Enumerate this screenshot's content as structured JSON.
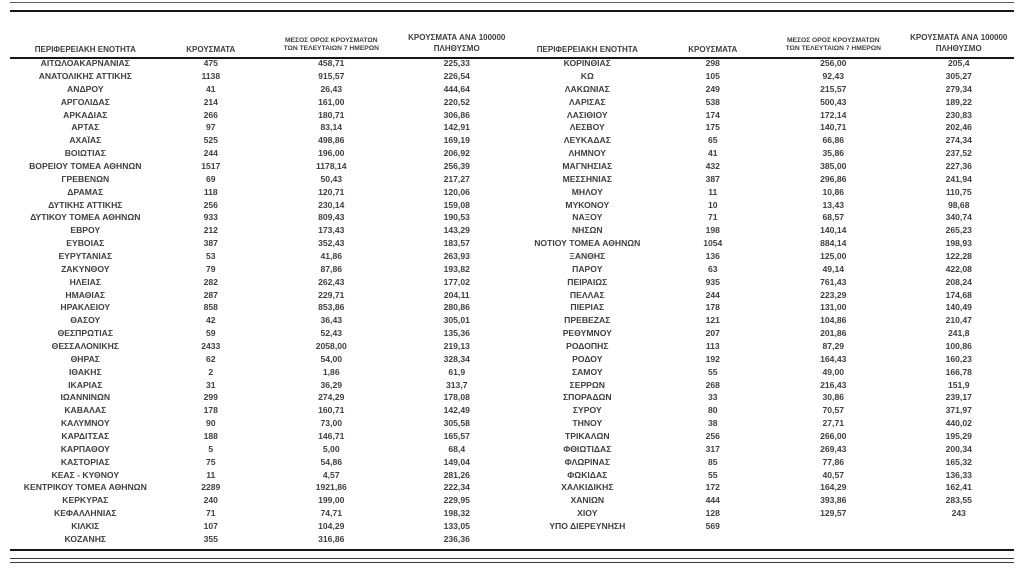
{
  "colors": {
    "text": "#3f3f3f",
    "rule": "#161616"
  },
  "table_columns": {
    "region": "ΠΕΡΙΦΕΡΕΙΑΚΗ ΕΝΟΤΗΤΑ",
    "cases": "ΚΡΟΥΣΜΑΤΑ",
    "avg7_line1": "ΜΕΣΟΣ ΟΡΟΣ ΚΡΟΥΣΜΑΤΩΝ",
    "avg7_line2": "ΤΩΝ ΤΕΛΕΥΤΑΙΩΝ 7 ΗΜΕΡΩΝ",
    "per100k_line1": "ΚΡΟΥΣΜΑΤΑ ΑΝΑ 100000",
    "per100k_line2": "ΠΛΗΘΥΣΜΟ"
  },
  "left_table": {
    "rows": [
      [
        "ΑΙΤΩΛΟΑΚΑΡΝΑΝΙΑΣ",
        "475",
        "458,71",
        "225,33"
      ],
      [
        "ΑΝΑΤΟΛΙΚΗΣ ΑΤΤΙΚΗΣ",
        "1138",
        "915,57",
        "226,54"
      ],
      [
        "ΑΝΔΡΟΥ",
        "41",
        "26,43",
        "444,64"
      ],
      [
        "ΑΡΓΟΛΙΔΑΣ",
        "214",
        "161,00",
        "220,52"
      ],
      [
        "ΑΡΚΑΔΙΑΣ",
        "266",
        "180,71",
        "306,86"
      ],
      [
        "ΑΡΤΑΣ",
        "97",
        "83,14",
        "142,91"
      ],
      [
        "ΑΧΑΪΑΣ",
        "525",
        "498,86",
        "169,19"
      ],
      [
        "ΒΟΙΩΤΙΑΣ",
        "244",
        "196,00",
        "206,92"
      ],
      [
        "ΒΟΡΕΙΟΥ ΤΟΜΕΑ ΑΘΗΝΩΝ",
        "1517",
        "1178,14",
        "256,39"
      ],
      [
        "ΓΡΕΒΕΝΩΝ",
        "69",
        "50,43",
        "217,27"
      ],
      [
        "ΔΡΑΜΑΣ",
        "118",
        "120,71",
        "120,06"
      ],
      [
        "ΔΥΤΙΚΗΣ ΑΤΤΙΚΗΣ",
        "256",
        "230,14",
        "159,08"
      ],
      [
        "ΔΥΤΙΚΟΥ ΤΟΜΕΑ ΑΘΗΝΩΝ",
        "933",
        "809,43",
        "190,53"
      ],
      [
        "ΕΒΡΟΥ",
        "212",
        "173,43",
        "143,29"
      ],
      [
        "ΕΥΒΟΙΑΣ",
        "387",
        "352,43",
        "183,57"
      ],
      [
        "ΕΥΡΥΤΑΝΙΑΣ",
        "53",
        "41,86",
        "263,93"
      ],
      [
        "ΖΑΚΥΝΘΟΥ",
        "79",
        "87,86",
        "193,82"
      ],
      [
        "ΗΛΕΙΑΣ",
        "282",
        "262,43",
        "177,02"
      ],
      [
        "ΗΜΑΘΙΑΣ",
        "287",
        "229,71",
        "204,11"
      ],
      [
        "ΗΡΑΚΛΕΙΟΥ",
        "858",
        "853,86",
        "280,86"
      ],
      [
        "ΘΑΣΟΥ",
        "42",
        "36,43",
        "305,01"
      ],
      [
        "ΘΕΣΠΡΩΤΙΑΣ",
        "59",
        "52,43",
        "135,36"
      ],
      [
        "ΘΕΣΣΑΛΟΝΙΚΗΣ",
        "2433",
        "2058,00",
        "219,13"
      ],
      [
        "ΘΗΡΑΣ",
        "62",
        "54,00",
        "328,34"
      ],
      [
        "ΙΘΑΚΗΣ",
        "2",
        "1,86",
        "61,9"
      ],
      [
        "ΙΚΑΡΙΑΣ",
        "31",
        "36,29",
        "313,7"
      ],
      [
        "ΙΩΑΝΝΙΝΩΝ",
        "299",
        "274,29",
        "178,08"
      ],
      [
        "ΚΑΒΑΛΑΣ",
        "178",
        "160,71",
        "142,49"
      ],
      [
        "ΚΑΛΥΜΝΟΥ",
        "90",
        "73,00",
        "305,58"
      ],
      [
        "ΚΑΡΔΙΤΣΑΣ",
        "188",
        "146,71",
        "165,57"
      ],
      [
        "ΚΑΡΠΑΘΟΥ",
        "5",
        "5,00",
        "68,4"
      ],
      [
        "ΚΑΣΤΟΡΙΑΣ",
        "75",
        "54,86",
        "149,04"
      ],
      [
        "ΚΕΑΣ - ΚΥΘΝΟΥ",
        "11",
        "4,57",
        "281,26"
      ],
      [
        "ΚΕΝΤΡΙΚΟΥ ΤΟΜΕΑ ΑΘΗΝΩΝ",
        "2289",
        "1921,86",
        "222,34"
      ],
      [
        "ΚΕΡΚΥΡΑΣ",
        "240",
        "199,00",
        "229,95"
      ],
      [
        "ΚΕΦΑΛΛΗΝΙΑΣ",
        "71",
        "74,71",
        "198,32"
      ],
      [
        "ΚΙΛΚΙΣ",
        "107",
        "104,29",
        "133,05"
      ],
      [
        "ΚΟΖΑΝΗΣ",
        "355",
        "316,86",
        "236,36"
      ]
    ]
  },
  "right_table": {
    "rows": [
      [
        "ΚΟΡΙΝΘΙΑΣ",
        "298",
        "256,00",
        "205,4"
      ],
      [
        "ΚΩ",
        "105",
        "92,43",
        "305,27"
      ],
      [
        "ΛΑΚΩΝΙΑΣ",
        "249",
        "215,57",
        "279,34"
      ],
      [
        "ΛΑΡΙΣΑΣ",
        "538",
        "500,43",
        "189,22"
      ],
      [
        "ΛΑΣΙΘΙΟΥ",
        "174",
        "172,14",
        "230,83"
      ],
      [
        "ΛΕΣΒΟΥ",
        "175",
        "140,71",
        "202,46"
      ],
      [
        "ΛΕΥΚΑΔΑΣ",
        "65",
        "66,86",
        "274,34"
      ],
      [
        "ΛΗΜΝΟΥ",
        "41",
        "35,86",
        "237,52"
      ],
      [
        "ΜΑΓΝΗΣΙΑΣ",
        "432",
        "385,00",
        "227,36"
      ],
      [
        "ΜΕΣΣΗΝΙΑΣ",
        "387",
        "296,86",
        "241,94"
      ],
      [
        "ΜΗΛΟΥ",
        "11",
        "10,86",
        "110,75"
      ],
      [
        "ΜΥΚΟΝΟΥ",
        "10",
        "13,43",
        "98,68"
      ],
      [
        "ΝΑΞΟΥ",
        "71",
        "68,57",
        "340,74"
      ],
      [
        "ΝΗΣΩΝ",
        "198",
        "140,14",
        "265,23"
      ],
      [
        "ΝΟΤΙΟΥ ΤΟΜΕΑ ΑΘΗΝΩΝ",
        "1054",
        "884,14",
        "198,93"
      ],
      [
        "ΞΑΝΘΗΣ",
        "136",
        "125,00",
        "122,28"
      ],
      [
        "ΠΑΡΟΥ",
        "63",
        "49,14",
        "422,08"
      ],
      [
        "ΠΕΙΡΑΙΩΣ",
        "935",
        "761,43",
        "208,24"
      ],
      [
        "ΠΕΛΛΑΣ",
        "244",
        "223,29",
        "174,68"
      ],
      [
        "ΠΙΕΡΙΑΣ",
        "178",
        "131,00",
        "140,49"
      ],
      [
        "ΠΡΕΒΕΖΑΣ",
        "121",
        "104,86",
        "210,47"
      ],
      [
        "ΡΕΘΥΜΝΟΥ",
        "207",
        "201,86",
        "241,8"
      ],
      [
        "ΡΟΔΟΠΗΣ",
        "113",
        "87,29",
        "100,86"
      ],
      [
        "ΡΟΔΟΥ",
        "192",
        "164,43",
        "160,23"
      ],
      [
        "ΣΑΜΟΥ",
        "55",
        "49,00",
        "166,78"
      ],
      [
        "ΣΕΡΡΩΝ",
        "268",
        "216,43",
        "151,9"
      ],
      [
        "ΣΠΟΡΑΔΩΝ",
        "33",
        "30,86",
        "239,17"
      ],
      [
        "ΣΥΡΟΥ",
        "80",
        "70,57",
        "371,97"
      ],
      [
        "ΤΗΝΟΥ",
        "38",
        "27,71",
        "440,02"
      ],
      [
        "ΤΡΙΚΑΛΩΝ",
        "256",
        "266,00",
        "195,29"
      ],
      [
        "ΦΘΙΩΤΙΔΑΣ",
        "317",
        "269,43",
        "200,34"
      ],
      [
        "ΦΛΩΡΙΝΑΣ",
        "85",
        "77,86",
        "165,32"
      ],
      [
        "ΦΩΚΙΔΑΣ",
        "55",
        "40,57",
        "136,33"
      ],
      [
        "ΧΑΛΚΙΔΙΚΗΣ",
        "172",
        "164,29",
        "162,41"
      ],
      [
        "ΧΑΝΙΩΝ",
        "444",
        "393,86",
        "283,55"
      ],
      [
        "ΧΙΟΥ",
        "128",
        "129,57",
        "243"
      ],
      [
        "ΥΠΟ ΔΙΕΡΕΥΝΗΣΗ",
        "569",
        "",
        ""
      ]
    ]
  }
}
